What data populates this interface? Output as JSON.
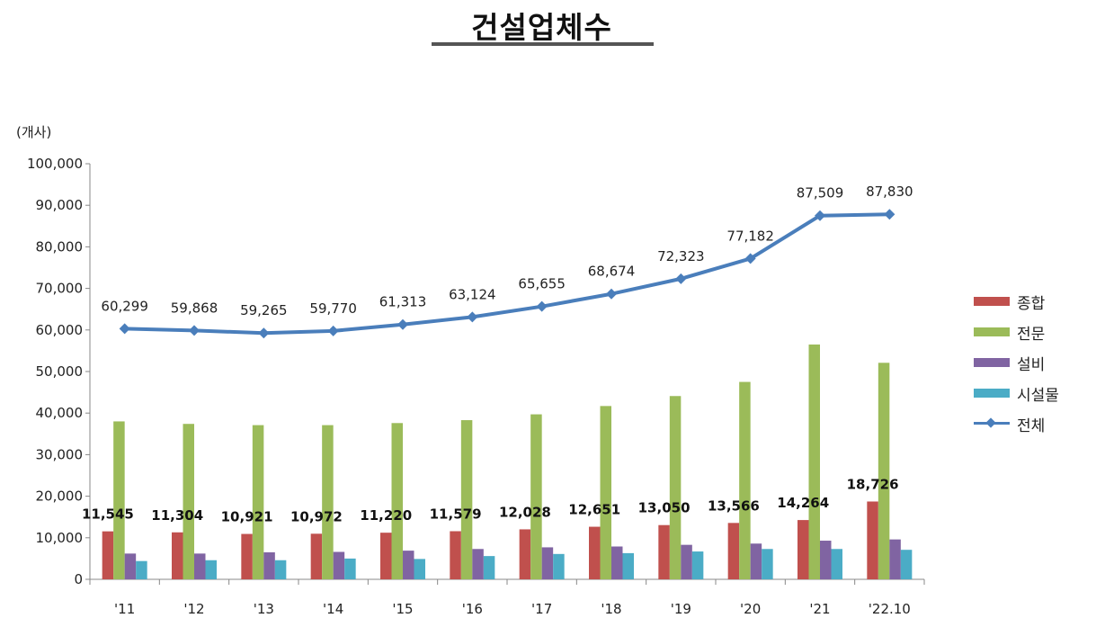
{
  "title": "건설업체수",
  "chart_data": {
    "type": "bar",
    "title": "건설업체수",
    "ylabel": "(개사)",
    "xlabel": "",
    "categories": [
      "'11",
      "'12",
      "'13",
      "'14",
      "'15",
      "'16",
      "'17",
      "'18",
      "'19",
      "'20",
      "'21",
      "'22.10"
    ],
    "ylim": [
      0,
      100000
    ],
    "yticks": [
      "0",
      "10,000",
      "20,000",
      "30,000",
      "40,000",
      "50,000",
      "60,000",
      "70,000",
      "80,000",
      "90,000",
      "100,000"
    ],
    "grid": false,
    "legend_position": "right",
    "series": [
      {
        "name": "종합",
        "type": "bar",
        "color": "#c0504d",
        "values": [
          11545,
          11304,
          10921,
          10972,
          11220,
          11579,
          12028,
          12651,
          13050,
          13566,
          14264,
          18726
        ],
        "labels": [
          "11,545",
          "11,304",
          "10,921",
          "10,972",
          "11,220",
          "11,579",
          "12,028",
          "12,651",
          "13,050",
          "13,566",
          "14,264",
          "18,726"
        ]
      },
      {
        "name": "전문",
        "type": "bar",
        "color": "#9bbb59",
        "values": [
          38000,
          37400,
          37100,
          37100,
          37600,
          38300,
          39700,
          41700,
          44100,
          47500,
          56500,
          52100
        ]
      },
      {
        "name": "설비",
        "type": "bar",
        "color": "#8064a2",
        "values": [
          6200,
          6200,
          6500,
          6600,
          6900,
          7300,
          7700,
          7900,
          8300,
          8600,
          9300,
          9600
        ]
      },
      {
        "name": "시설물",
        "type": "bar",
        "color": "#4bacc6",
        "values": [
          4400,
          4600,
          4600,
          5000,
          4900,
          5600,
          6100,
          6300,
          6700,
          7300,
          7300,
          7100
        ]
      },
      {
        "name": "전체",
        "type": "line",
        "color": "#4a7ebb",
        "values": [
          60299,
          59868,
          59265,
          59770,
          61313,
          63124,
          65655,
          68674,
          72323,
          77182,
          87509,
          87830
        ],
        "labels": [
          "60,299",
          "59,868",
          "59,265",
          "59,770",
          "61,313",
          "63,124",
          "65,655",
          "68,674",
          "72,323",
          "77,182",
          "87,509",
          "87,830"
        ]
      }
    ]
  }
}
